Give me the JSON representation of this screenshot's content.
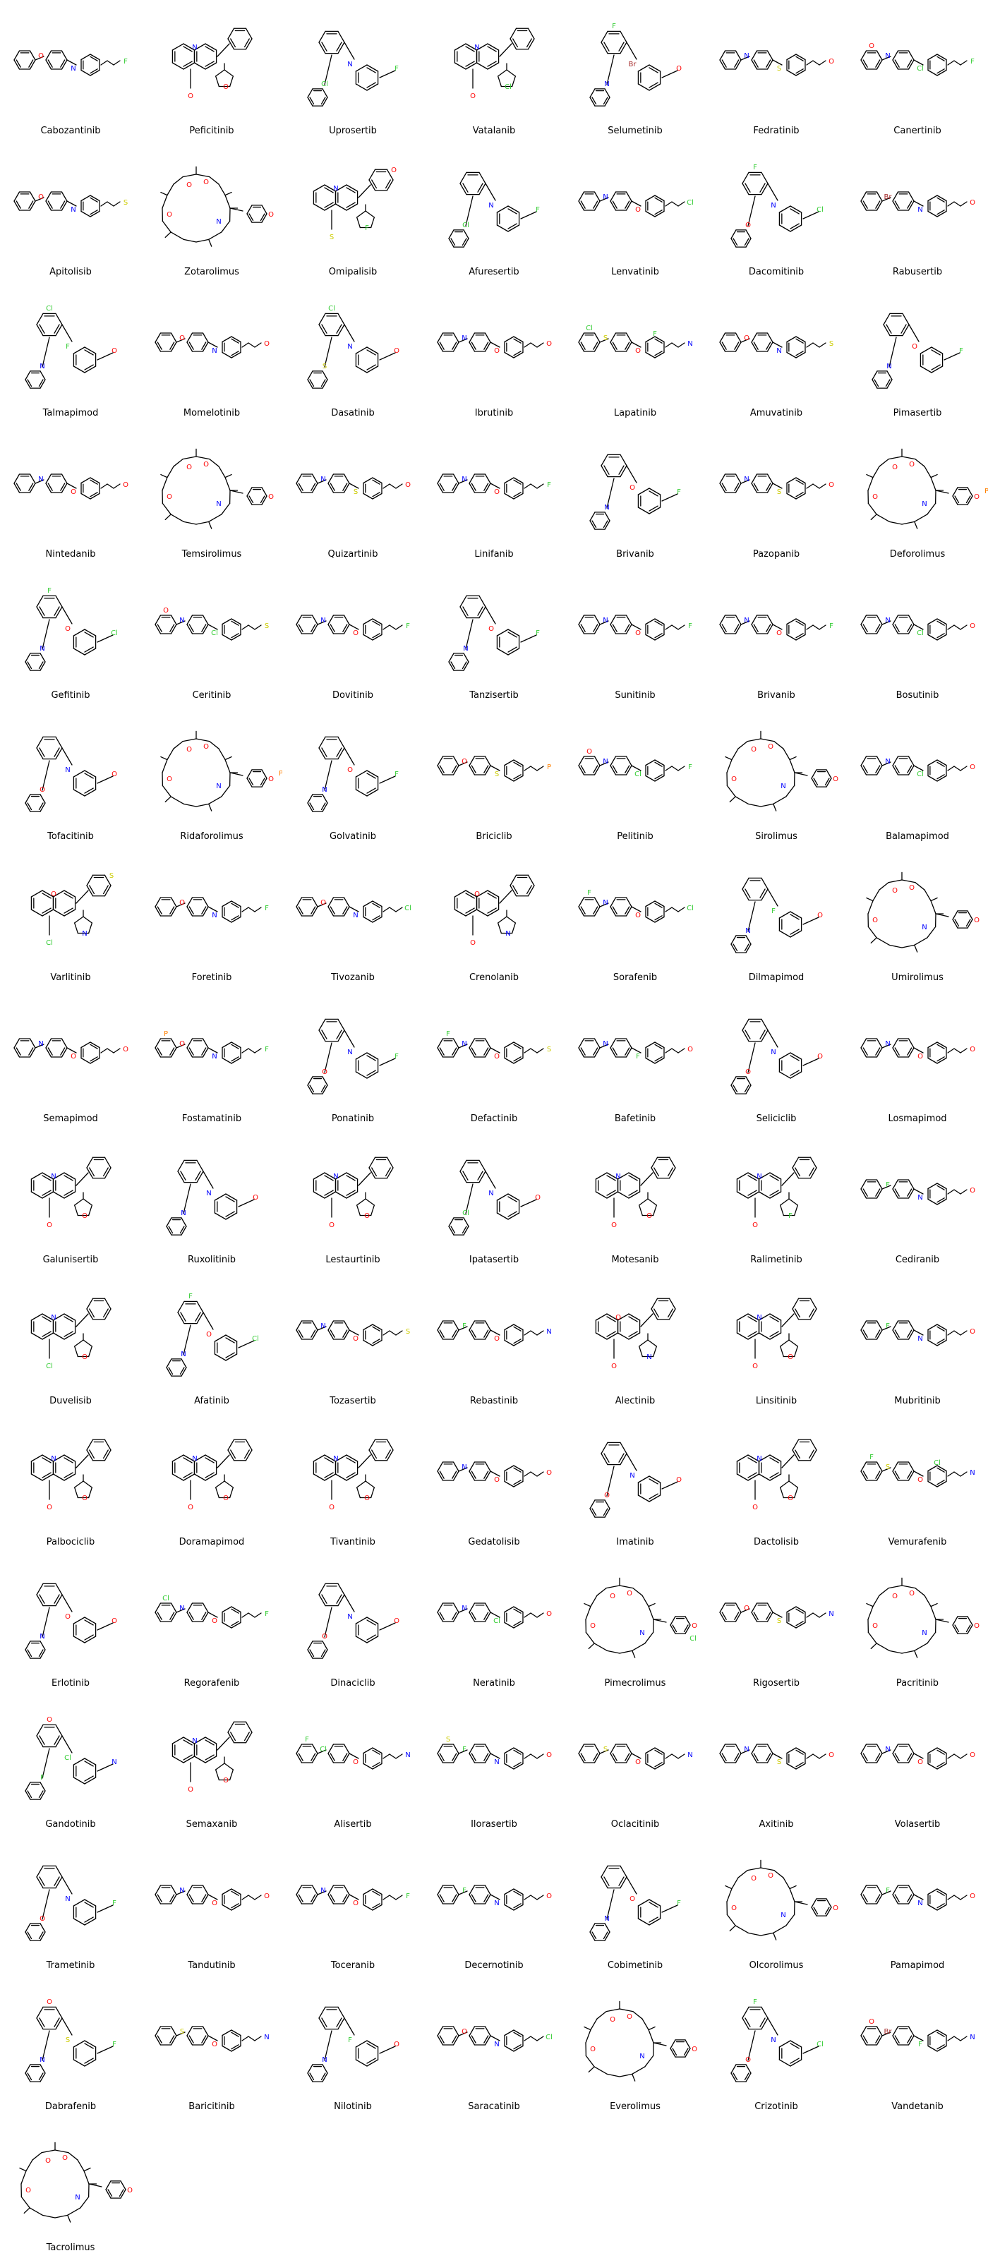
{
  "colors": {
    "bond": "#000000",
    "N": "#0000FF",
    "O": "#FF0000",
    "F": "#33CC33",
    "Cl": "#33CC33",
    "Br": "#A52A2A",
    "S": "#CCCC00",
    "P": "#FF8000"
  },
  "molecules": [
    {
      "name": "Cabozantinib",
      "motif": "chain",
      "het": [
        "O",
        "N",
        "F"
      ]
    },
    {
      "name": "Peficitinib",
      "motif": "fused",
      "het": [
        "N",
        "O"
      ]
    },
    {
      "name": "Uprosertib",
      "motif": "branched",
      "het": [
        "N",
        "Cl",
        "F"
      ]
    },
    {
      "name": "Vatalanib",
      "motif": "fused",
      "het": [
        "N",
        "Cl"
      ]
    },
    {
      "name": "Selumetinib",
      "motif": "branched",
      "het": [
        "Br",
        "N",
        "O",
        "F"
      ]
    },
    {
      "name": "Fedratinib",
      "motif": "chain",
      "het": [
        "N",
        "S",
        "O"
      ]
    },
    {
      "name": "Canertinib",
      "motif": "chain",
      "het": [
        "N",
        "Cl",
        "F",
        "O"
      ]
    },
    {
      "name": "Apitolisib",
      "motif": "chain",
      "het": [
        "O",
        "N",
        "S"
      ]
    },
    {
      "name": "Zotarolimus",
      "motif": "macro",
      "het": [
        "O",
        "N"
      ]
    },
    {
      "name": "Omipalisib",
      "motif": "fused",
      "het": [
        "N",
        "F",
        "S",
        "O"
      ]
    },
    {
      "name": "Afuresertib",
      "motif": "branched",
      "het": [
        "N",
        "Cl",
        "F"
      ]
    },
    {
      "name": "Lenvatinib",
      "motif": "chain",
      "het": [
        "N",
        "O",
        "Cl"
      ]
    },
    {
      "name": "Dacomitinib",
      "motif": "branched",
      "het": [
        "N",
        "O",
        "Cl",
        "F"
      ]
    },
    {
      "name": "Rabusertib",
      "motif": "chain",
      "het": [
        "Br",
        "N",
        "O"
      ]
    },
    {
      "name": "Talmapimod",
      "motif": "branched",
      "het": [
        "F",
        "N",
        "O",
        "Cl"
      ]
    },
    {
      "name": "Momelotinib",
      "motif": "chain",
      "het": [
        "O",
        "N"
      ]
    },
    {
      "name": "Dasatinib",
      "motif": "branched",
      "het": [
        "N",
        "S",
        "O",
        "Cl"
      ]
    },
    {
      "name": "Ibrutinib",
      "motif": "chain",
      "het": [
        "N",
        "O"
      ]
    },
    {
      "name": "Lapatinib",
      "motif": "chain",
      "het": [
        "S",
        "O",
        "N",
        "Cl",
        "F"
      ]
    },
    {
      "name": "Amuvatinib",
      "motif": "chain",
      "het": [
        "O",
        "N",
        "S"
      ]
    },
    {
      "name": "Pimasertib",
      "motif": "branched",
      "het": [
        "O",
        "N",
        "F"
      ]
    },
    {
      "name": "Nintedanib",
      "motif": "chain",
      "het": [
        "N",
        "O"
      ]
    },
    {
      "name": "Temsirolimus",
      "motif": "macro",
      "het": [
        "O",
        "N"
      ]
    },
    {
      "name": "Quizartinib",
      "motif": "chain",
      "het": [
        "N",
        "S",
        "O"
      ]
    },
    {
      "name": "Linifanib",
      "motif": "chain",
      "het": [
        "N",
        "O",
        "F"
      ]
    },
    {
      "name": "Brivanib",
      "motif": "branched",
      "het": [
        "O",
        "N",
        "F"
      ]
    },
    {
      "name": "Pazopanib",
      "motif": "chain",
      "het": [
        "N",
        "S",
        "O"
      ]
    },
    {
      "name": "Deforolimus",
      "motif": "macro",
      "het": [
        "O",
        "N",
        "P"
      ]
    },
    {
      "name": "Gefitinib",
      "motif": "branched",
      "het": [
        "O",
        "N",
        "Cl",
        "F"
      ]
    },
    {
      "name": "Ceritinib",
      "motif": "chain",
      "het": [
        "N",
        "Cl",
        "S",
        "O"
      ]
    },
    {
      "name": "Dovitinib",
      "motif": "chain",
      "het": [
        "N",
        "O",
        "F"
      ]
    },
    {
      "name": "Tanzisertib",
      "motif": "branched",
      "het": [
        "O",
        "N",
        "F"
      ]
    },
    {
      "name": "Sunitinib",
      "motif": "chain",
      "het": [
        "N",
        "O",
        "F"
      ]
    },
    {
      "name": "Brivanib",
      "motif": "chain",
      "het": [
        "N",
        "O",
        "F"
      ]
    },
    {
      "name": "Bosutinib",
      "motif": "chain",
      "het": [
        "N",
        "Cl",
        "O"
      ]
    },
    {
      "name": "Tofacitinib",
      "motif": "branched",
      "het": [
        "N",
        "O"
      ]
    },
    {
      "name": "Ridaforolimus",
      "motif": "macro",
      "het": [
        "O",
        "N",
        "P"
      ]
    },
    {
      "name": "Golvatinib",
      "motif": "branched",
      "het": [
        "O",
        "N",
        "F"
      ]
    },
    {
      "name": "Briciclib",
      "motif": "chain",
      "het": [
        "O",
        "S",
        "P"
      ]
    },
    {
      "name": "Pelitinib",
      "motif": "chain",
      "het": [
        "N",
        "Cl",
        "F",
        "O"
      ]
    },
    {
      "name": "Sirolimus",
      "motif": "macro",
      "het": [
        "O",
        "N"
      ]
    },
    {
      "name": "Balamapimod",
      "motif": "chain",
      "het": [
        "N",
        "Cl",
        "O"
      ]
    },
    {
      "name": "Varlitinib",
      "motif": "fused",
      "het": [
        "O",
        "N",
        "Cl",
        "S"
      ]
    },
    {
      "name": "Foretinib",
      "motif": "chain",
      "het": [
        "O",
        "N",
        "F"
      ]
    },
    {
      "name": "Tivozanib",
      "motif": "chain",
      "het": [
        "O",
        "N",
        "Cl"
      ]
    },
    {
      "name": "Crenolanib",
      "motif": "fused",
      "het": [
        "O",
        "N"
      ]
    },
    {
      "name": "Sorafenib",
      "motif": "chain",
      "het": [
        "N",
        "O",
        "Cl",
        "F"
      ]
    },
    {
      "name": "Dilmapimod",
      "motif": "branched",
      "het": [
        "F",
        "N",
        "O"
      ]
    },
    {
      "name": "Umirolimus",
      "motif": "macro",
      "het": [
        "O",
        "N"
      ]
    },
    {
      "name": "Semapimod",
      "motif": "chain",
      "het": [
        "N",
        "O"
      ]
    },
    {
      "name": "Fostamatinib",
      "motif": "chain",
      "het": [
        "O",
        "N",
        "F",
        "P"
      ]
    },
    {
      "name": "Ponatinib",
      "motif": "branched",
      "het": [
        "N",
        "O",
        "F"
      ]
    },
    {
      "name": "Defactinib",
      "motif": "chain",
      "het": [
        "N",
        "O",
        "S",
        "F"
      ]
    },
    {
      "name": "Bafetinib",
      "motif": "chain",
      "het": [
        "N",
        "F",
        "O"
      ]
    },
    {
      "name": "Seliciclib",
      "motif": "branched",
      "het": [
        "N",
        "O"
      ]
    },
    {
      "name": "Losmapimod",
      "motif": "chain",
      "het": [
        "N",
        "O"
      ]
    },
    {
      "name": "Galunisertib",
      "motif": "fused",
      "het": [
        "N",
        "O"
      ]
    },
    {
      "name": "Ruxolitinib",
      "motif": "branched",
      "het": [
        "N"
      ]
    },
    {
      "name": "Lestaurtinib",
      "motif": "fused",
      "het": [
        "N",
        "O"
      ]
    },
    {
      "name": "Ipatasertib",
      "motif": "branched",
      "het": [
        "N",
        "Cl",
        "O"
      ]
    },
    {
      "name": "Motesanib",
      "motif": "fused",
      "het": [
        "N",
        "O"
      ]
    },
    {
      "name": "Ralimetinib",
      "motif": "fused",
      "het": [
        "N",
        "F"
      ]
    },
    {
      "name": "Cediranib",
      "motif": "chain",
      "het": [
        "F",
        "N",
        "O"
      ]
    },
    {
      "name": "Duvelisib",
      "motif": "fused",
      "het": [
        "N",
        "O",
        "Cl"
      ]
    },
    {
      "name": "Afatinib",
      "motif": "branched",
      "het": [
        "O",
        "N",
        "Cl",
        "F"
      ]
    },
    {
      "name": "Tozasertib",
      "motif": "chain",
      "het": [
        "N",
        "O",
        "S"
      ]
    },
    {
      "name": "Rebastinib",
      "motif": "chain",
      "het": [
        "F",
        "O",
        "N"
      ]
    },
    {
      "name": "Alectinib",
      "motif": "fused",
      "het": [
        "O",
        "N"
      ]
    },
    {
      "name": "Linsitinib",
      "motif": "fused",
      "het": [
        "N",
        "O"
      ]
    },
    {
      "name": "Mubritinib",
      "motif": "chain",
      "het": [
        "F",
        "N",
        "O"
      ]
    },
    {
      "name": "Palbociclib",
      "motif": "fused",
      "het": [
        "N",
        "O"
      ]
    },
    {
      "name": "Doramapimod",
      "motif": "fused",
      "het": [
        "N",
        "O"
      ]
    },
    {
      "name": "Tivantinib",
      "motif": "fused",
      "het": [
        "N",
        "O"
      ]
    },
    {
      "name": "Gedatolisib",
      "motif": "chain",
      "het": [
        "N",
        "O"
      ]
    },
    {
      "name": "Imatinib",
      "motif": "branched",
      "het": [
        "N",
        "O"
      ]
    },
    {
      "name": "Dactolisib",
      "motif": "fused",
      "het": [
        "N",
        "O"
      ]
    },
    {
      "name": "Vemurafenib",
      "motif": "chain",
      "het": [
        "S",
        "O",
        "N",
        "F",
        "Cl"
      ]
    },
    {
      "name": "Erlotinib",
      "motif": "branched",
      "het": [
        "O",
        "N"
      ]
    },
    {
      "name": "Regorafenib",
      "motif": "chain",
      "het": [
        "N",
        "O",
        "F",
        "Cl"
      ]
    },
    {
      "name": "Dinaciclib",
      "motif": "branched",
      "het": [
        "N",
        "O"
      ]
    },
    {
      "name": "Neratinib",
      "motif": "chain",
      "het": [
        "N",
        "Cl",
        "O"
      ]
    },
    {
      "name": "Pimecrolimus",
      "motif": "macro",
      "het": [
        "O",
        "N",
        "Cl"
      ]
    },
    {
      "name": "Rigosertib",
      "motif": "chain",
      "het": [
        "O",
        "S",
        "N"
      ]
    },
    {
      "name": "Pacritinib",
      "motif": "macro",
      "het": [
        "N",
        "O"
      ]
    },
    {
      "name": "Gandotinib",
      "motif": "branched",
      "het": [
        "Cl",
        "F",
        "N",
        "O"
      ]
    },
    {
      "name": "Semaxanib",
      "motif": "fused",
      "het": [
        "N",
        "O"
      ]
    },
    {
      "name": "Alisertib",
      "motif": "chain",
      "het": [
        "Cl",
        "O",
        "N",
        "F"
      ]
    },
    {
      "name": "Ilorasertib",
      "motif": "chain",
      "het": [
        "F",
        "N",
        "O",
        "S"
      ]
    },
    {
      "name": "Oclacitinib",
      "motif": "chain",
      "het": [
        "S",
        "O",
        "N"
      ]
    },
    {
      "name": "Axitinib",
      "motif": "chain",
      "het": [
        "N",
        "S",
        "O"
      ]
    },
    {
      "name": "Volasertib",
      "motif": "chain",
      "het": [
        "N",
        "O"
      ]
    },
    {
      "name": "Trametinib",
      "motif": "branched",
      "het": [
        "N",
        "O",
        "F"
      ]
    },
    {
      "name": "Tandutinib",
      "motif": "chain",
      "het": [
        "N",
        "O"
      ]
    },
    {
      "name": "Toceranib",
      "motif": "chain",
      "het": [
        "N",
        "O",
        "F"
      ]
    },
    {
      "name": "Decernotinib",
      "motif": "chain",
      "het": [
        "F",
        "N",
        "O"
      ]
    },
    {
      "name": "Cobimetinib",
      "motif": "branched",
      "het": [
        "O",
        "N",
        "F"
      ]
    },
    {
      "name": "Olcorolimus",
      "motif": "macro",
      "het": [
        "O",
        "N"
      ]
    },
    {
      "name": "Pamapimod",
      "motif": "chain",
      "het": [
        "F",
        "N",
        "O"
      ]
    },
    {
      "name": "Dabrafenib",
      "motif": "branched",
      "het": [
        "S",
        "N",
        "F",
        "O"
      ]
    },
    {
      "name": "Baricitinib",
      "motif": "chain",
      "het": [
        "S",
        "O",
        "N"
      ]
    },
    {
      "name": "Nilotinib",
      "motif": "branched",
      "het": [
        "F",
        "N",
        "O"
      ]
    },
    {
      "name": "Saracatinib",
      "motif": "chain",
      "het": [
        "O",
        "N",
        "Cl"
      ]
    },
    {
      "name": "Everolimus",
      "motif": "macro",
      "het": [
        "O",
        "N"
      ]
    },
    {
      "name": "Crizotinib",
      "motif": "branched",
      "het": [
        "N",
        "O",
        "Cl",
        "F"
      ]
    },
    {
      "name": "Vandetanib",
      "motif": "chain",
      "het": [
        "Br",
        "F",
        "N",
        "O"
      ]
    },
    {
      "name": "Tacrolimus",
      "motif": "macro",
      "het": [
        "O",
        "N"
      ]
    }
  ]
}
